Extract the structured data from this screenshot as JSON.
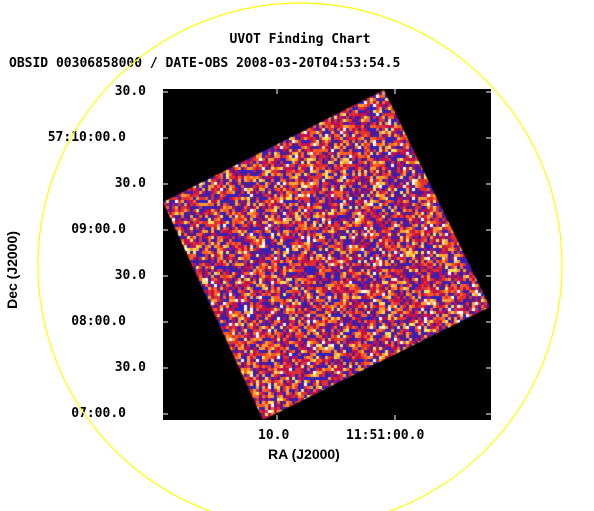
{
  "title": "UVOT Finding Chart",
  "subtitle": "OBSID 00306858000 / DATE-OBS 2008-03-20T04:53:54.5",
  "axes": {
    "xlabel": "RA (J2000)",
    "ylabel": "Dec (J2000)",
    "y_ticks": [
      "30.0",
      "57:10:00.0",
      "30.0",
      "09:00.0",
      "30.0",
      "08:00.0",
      "30.0",
      "07:00.0"
    ],
    "x_ticks": [
      "10.0",
      "11:51:00.0"
    ]
  },
  "colors": {
    "circle": "#ffff00",
    "background": "#000000",
    "palette": [
      "#5a1a8a",
      "#3020c0",
      "#c01050",
      "#e03030",
      "#ff6020",
      "#ffa030",
      "#ffe060",
      "#ffffff"
    ]
  }
}
